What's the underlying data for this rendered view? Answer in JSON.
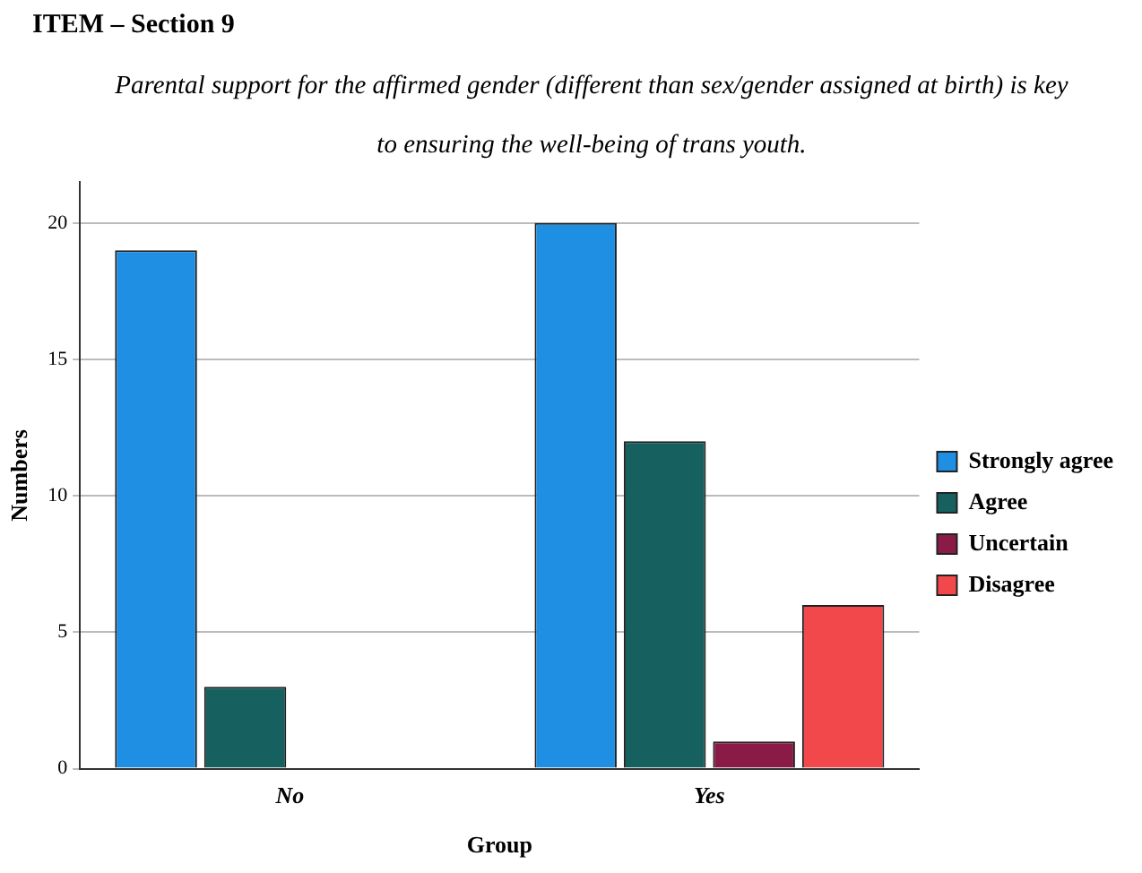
{
  "chart_data": {
    "type": "bar",
    "title": "ITEM – Section 9",
    "subtitle": "Parental support for the affirmed gender (different than sex/gender assigned at birth) is key to ensuring the well-being of trans youth.",
    "xlabel": "Group",
    "ylabel": "Numbers",
    "categories": [
      "No",
      "Yes"
    ],
    "series": [
      {
        "name": "Strongly agree",
        "color": "#1f8fe3",
        "values": [
          19,
          20
        ]
      },
      {
        "name": "Agree",
        "color": "#16615f",
        "values": [
          3,
          12
        ]
      },
      {
        "name": "Uncertain",
        "color": "#8a1b47",
        "values": [
          null,
          1
        ]
      },
      {
        "name": "Disagree",
        "color": "#f2484c",
        "values": [
          null,
          6
        ]
      }
    ],
    "ylim": [
      0,
      21.5
    ],
    "yticks": [
      0,
      5,
      10,
      15,
      20
    ],
    "grid": "y",
    "legend": "right"
  }
}
